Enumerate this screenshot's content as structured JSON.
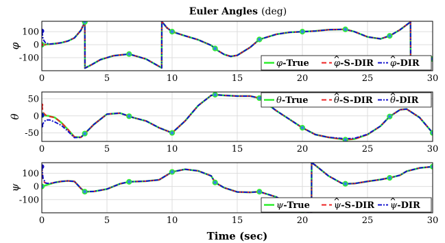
{
  "title": {
    "main": "Euler Angles",
    "unit": "(deg)"
  },
  "xlabel": "Time (sec)",
  "colors": {
    "true": "#33ee33",
    "sdir": "#ee2222",
    "dir": "#1111cc",
    "grid": "#dddddd",
    "marker": "#3388dd"
  },
  "chart_data": [
    {
      "type": "line",
      "ylabel": "φ",
      "xlim": [
        0,
        30
      ],
      "ylim": [
        -200,
        180
      ],
      "xticks": [
        0,
        5,
        10,
        15,
        20,
        25,
        30
      ],
      "yticks": [
        -100,
        0,
        100
      ],
      "legend_position": "bottom-right",
      "series": [
        {
          "name": "φ-True",
          "hat": false,
          "x": [
            0,
            0.5,
            1,
            1.5,
            2,
            2.5,
            3,
            3.3,
            3.31,
            3.8,
            4.5,
            5.5,
            6.7,
            8,
            9.2,
            9.21,
            9.6,
            10,
            11,
            12,
            13,
            13.5,
            14,
            14.5,
            15,
            16,
            16.7,
            18,
            19,
            20,
            21,
            22,
            23.3,
            24,
            25,
            26,
            26.7,
            27.5,
            28.3,
            28.31,
            29,
            30
          ],
          "y": [
            0,
            3,
            8,
            15,
            28,
            52,
            110,
            175,
            -180,
            -155,
            -115,
            -85,
            -72,
            -110,
            -178,
            178,
            130,
            100,
            68,
            38,
            -5,
            -45,
            -75,
            -90,
            -82,
            -20,
            40,
            80,
            95,
            100,
            105,
            115,
            118,
            100,
            60,
            45,
            68,
            115,
            175,
            -180,
            -170,
            -110
          ]
        },
        {
          "name": "φ-S-DIR",
          "hat": true,
          "x": [
            0,
            0.05,
            0.2,
            0.5,
            1,
            1.5,
            2,
            2.5,
            3,
            3.3,
            3.31,
            3.8,
            4.5,
            5.5,
            6.7,
            8,
            9.2,
            9.21,
            9.6,
            10,
            11,
            12,
            13,
            13.5,
            14,
            14.5,
            15,
            16,
            16.7,
            18,
            19,
            20,
            21,
            22,
            23.3,
            24,
            25,
            26,
            26.7,
            27.5,
            28.3,
            28.31,
            29,
            30
          ],
          "y": [
            0,
            -5,
            -2,
            3,
            8,
            15,
            28,
            52,
            110,
            175,
            -180,
            -155,
            -115,
            -85,
            -72,
            -110,
            -178,
            178,
            130,
            100,
            68,
            38,
            -5,
            -45,
            -75,
            -90,
            -82,
            -20,
            40,
            80,
            95,
            100,
            105,
            115,
            118,
            100,
            60,
            45,
            68,
            115,
            175,
            -180,
            -170,
            -110
          ]
        },
        {
          "name": "φ-DIR",
          "hat": true,
          "x": [
            0,
            0.02,
            0.1,
            0.3,
            0.6,
            1,
            1.5,
            2,
            2.5,
            3,
            3.3,
            3.31,
            3.8,
            4.5,
            5.5,
            6.7,
            8,
            9.2,
            9.21,
            9.6,
            10,
            11,
            12,
            13,
            13.5,
            14,
            14.5,
            15,
            16,
            16.7,
            18,
            19,
            20,
            21,
            22,
            23.3,
            24,
            25,
            26,
            26.7,
            27.5,
            28.3,
            28.31,
            29,
            30
          ],
          "y": [
            100,
            95,
            40,
            12,
            5,
            8,
            15,
            28,
            52,
            110,
            175,
            -180,
            -155,
            -115,
            -85,
            -72,
            -110,
            -178,
            178,
            130,
            100,
            68,
            38,
            -5,
            -45,
            -75,
            -90,
            -82,
            -20,
            40,
            80,
            95,
            100,
            105,
            115,
            118,
            100,
            60,
            45,
            68,
            115,
            175,
            -180,
            -170,
            -110
          ]
        }
      ],
      "markers": {
        "x": [
          0,
          3.3,
          6.7,
          10,
          13.3,
          16.7,
          20,
          23.3,
          26.7,
          30
        ],
        "extra": [
          [
            0,
            105
          ]
        ]
      }
    },
    {
      "type": "line",
      "ylabel": "θ",
      "xlim": [
        0,
        30
      ],
      "ylim": [
        -75,
        70
      ],
      "xticks": [
        0,
        5,
        10,
        15,
        20,
        25,
        30
      ],
      "yticks": [
        -50,
        0,
        50
      ],
      "legend_position": "top-right",
      "series": [
        {
          "name": "θ-True",
          "hat": false,
          "x": [
            0,
            0.5,
            1,
            1.5,
            2,
            2.5,
            3,
            3.3,
            4,
            5,
            6,
            7,
            8,
            9,
            10,
            11,
            12,
            13,
            13.3,
            14,
            15,
            16,
            16.7,
            18,
            19,
            20,
            21,
            22,
            23.3,
            24,
            25,
            26,
            26.7,
            27.5,
            28,
            29,
            30
          ],
          "y": [
            2,
            0,
            -5,
            -20,
            -40,
            -62,
            -63,
            -52,
            -25,
            5,
            8,
            -5,
            -15,
            -35,
            -50,
            -15,
            30,
            60,
            62,
            60,
            58,
            58,
            52,
            15,
            -10,
            -35,
            -55,
            -63,
            -70,
            -68,
            -55,
            -30,
            -2,
            18,
            20,
            -5,
            -50
          ]
        },
        {
          "name": "θ-S-DIR",
          "hat": true,
          "x": [
            0,
            0.1,
            0.3,
            0.6,
            1,
            1.5,
            2,
            2.5,
            3,
            3.3,
            4,
            5,
            6,
            7,
            8,
            9,
            10,
            11,
            12,
            13,
            13.3,
            14,
            15,
            16,
            16.7,
            18,
            19,
            20,
            21,
            22,
            23.3,
            24,
            25,
            26,
            26.7,
            27.5,
            28,
            29,
            30
          ],
          "y": [
            32,
            10,
            2,
            -2,
            -5,
            -20,
            -40,
            -62,
            -63,
            -52,
            -25,
            5,
            8,
            -5,
            -15,
            -35,
            -50,
            -15,
            30,
            60,
            62,
            60,
            58,
            58,
            52,
            15,
            -10,
            -35,
            -55,
            -63,
            -70,
            -68,
            -55,
            -30,
            -2,
            18,
            20,
            -5,
            -50
          ]
        },
        {
          "name": "θ-DIR",
          "hat": true,
          "x": [
            0,
            0.1,
            0.3,
            0.6,
            1,
            1.5,
            2,
            2.5,
            3,
            3.3,
            4,
            5,
            6,
            7,
            8,
            9,
            10,
            11,
            12,
            13,
            13.3,
            14,
            15,
            16,
            16.7,
            18,
            19,
            20,
            21,
            22,
            23.3,
            24,
            25,
            26,
            26.7,
            27.5,
            28,
            29,
            30
          ],
          "y": [
            -30,
            -22,
            -12,
            -12,
            -18,
            -28,
            -45,
            -64,
            -63,
            -52,
            -25,
            5,
            8,
            -5,
            -15,
            -35,
            -50,
            -15,
            30,
            60,
            62,
            60,
            58,
            58,
            52,
            15,
            -10,
            -35,
            -55,
            -63,
            -67,
            -66,
            -54,
            -30,
            -2,
            18,
            20,
            -5,
            -50
          ]
        }
      ],
      "markers": {
        "x": [
          0,
          3.3,
          6.7,
          10,
          13.3,
          16.7,
          20,
          23.3,
          26.7,
          30
        ],
        "extra": [
          [
            0,
            2
          ]
        ]
      }
    },
    {
      "type": "line",
      "ylabel": "ψ",
      "xlim": [
        0,
        30
      ],
      "ylim": [
        -200,
        180
      ],
      "xticks": [
        0,
        5,
        10,
        15,
        20,
        25,
        30
      ],
      "yticks": [
        -100,
        0,
        100
      ],
      "legend_position": "bottom-right",
      "series": [
        {
          "name": "ψ-True",
          "hat": false,
          "x": [
            0,
            0.5,
            1,
            1.5,
            2,
            2.5,
            3,
            3.3,
            4,
            5,
            6,
            6.7,
            8,
            9,
            10,
            11,
            12,
            13,
            13.3,
            14,
            15,
            16,
            16.7,
            18,
            19,
            20,
            20.7,
            20.71,
            21,
            22,
            23,
            23.3,
            24,
            25,
            26,
            26.7,
            27.5,
            28,
            29,
            30
          ],
          "y": [
            0,
            15,
            30,
            38,
            42,
            38,
            -15,
            -40,
            -38,
            -20,
            20,
            35,
            40,
            50,
            110,
            130,
            118,
            80,
            30,
            -10,
            -42,
            -45,
            -40,
            -80,
            -135,
            -180,
            -200,
            180,
            160,
            80,
            25,
            20,
            22,
            38,
            52,
            65,
            85,
            115,
            140,
            150
          ]
        },
        {
          "name": "ψ-S-DIR",
          "hat": true,
          "x": [
            0,
            0.05,
            0.2,
            0.5,
            1,
            1.5,
            2,
            2.5,
            3,
            3.3,
            4,
            5,
            6,
            6.7,
            8,
            9,
            10,
            11,
            12,
            13,
            13.3,
            14,
            15,
            16,
            16.7,
            18,
            19,
            20,
            20.7,
            20.71,
            21,
            22,
            23,
            23.3,
            24,
            25,
            26,
            26.7,
            27.5,
            28,
            29,
            30
          ],
          "y": [
            150,
            70,
            30,
            20,
            30,
            38,
            42,
            38,
            -15,
            -40,
            -38,
            -20,
            20,
            35,
            40,
            50,
            110,
            130,
            118,
            80,
            30,
            -10,
            -42,
            -45,
            -40,
            -80,
            -135,
            -180,
            -200,
            180,
            160,
            80,
            25,
            20,
            22,
            38,
            52,
            65,
            85,
            115,
            140,
            150
          ]
        },
        {
          "name": "ψ-DIR",
          "hat": true,
          "x": [
            0,
            0.02,
            0.1,
            0.3,
            0.6,
            1,
            1.5,
            2,
            2.5,
            3,
            3.3,
            4,
            5,
            6,
            6.7,
            8,
            9,
            10,
            11,
            12,
            13,
            13.3,
            14,
            15,
            16,
            16.7,
            18,
            19,
            20,
            20.7,
            20.71,
            21,
            22,
            23,
            23.3,
            24,
            25,
            26,
            26.7,
            27.5,
            28,
            29,
            30
          ],
          "y": [
            150,
            130,
            60,
            25,
            22,
            30,
            38,
            42,
            38,
            -15,
            -40,
            -38,
            -20,
            20,
            35,
            40,
            50,
            110,
            130,
            118,
            80,
            30,
            -10,
            -42,
            -45,
            -40,
            -80,
            -135,
            -180,
            -200,
            180,
            160,
            80,
            25,
            20,
            22,
            38,
            52,
            65,
            85,
            115,
            140,
            150
          ]
        }
      ],
      "markers": {
        "x": [
          0,
          3.3,
          6.7,
          10,
          13.3,
          16.7,
          20,
          23.3,
          26.7,
          30
        ],
        "extra": [
          [
            0,
            150
          ]
        ]
      }
    }
  ]
}
